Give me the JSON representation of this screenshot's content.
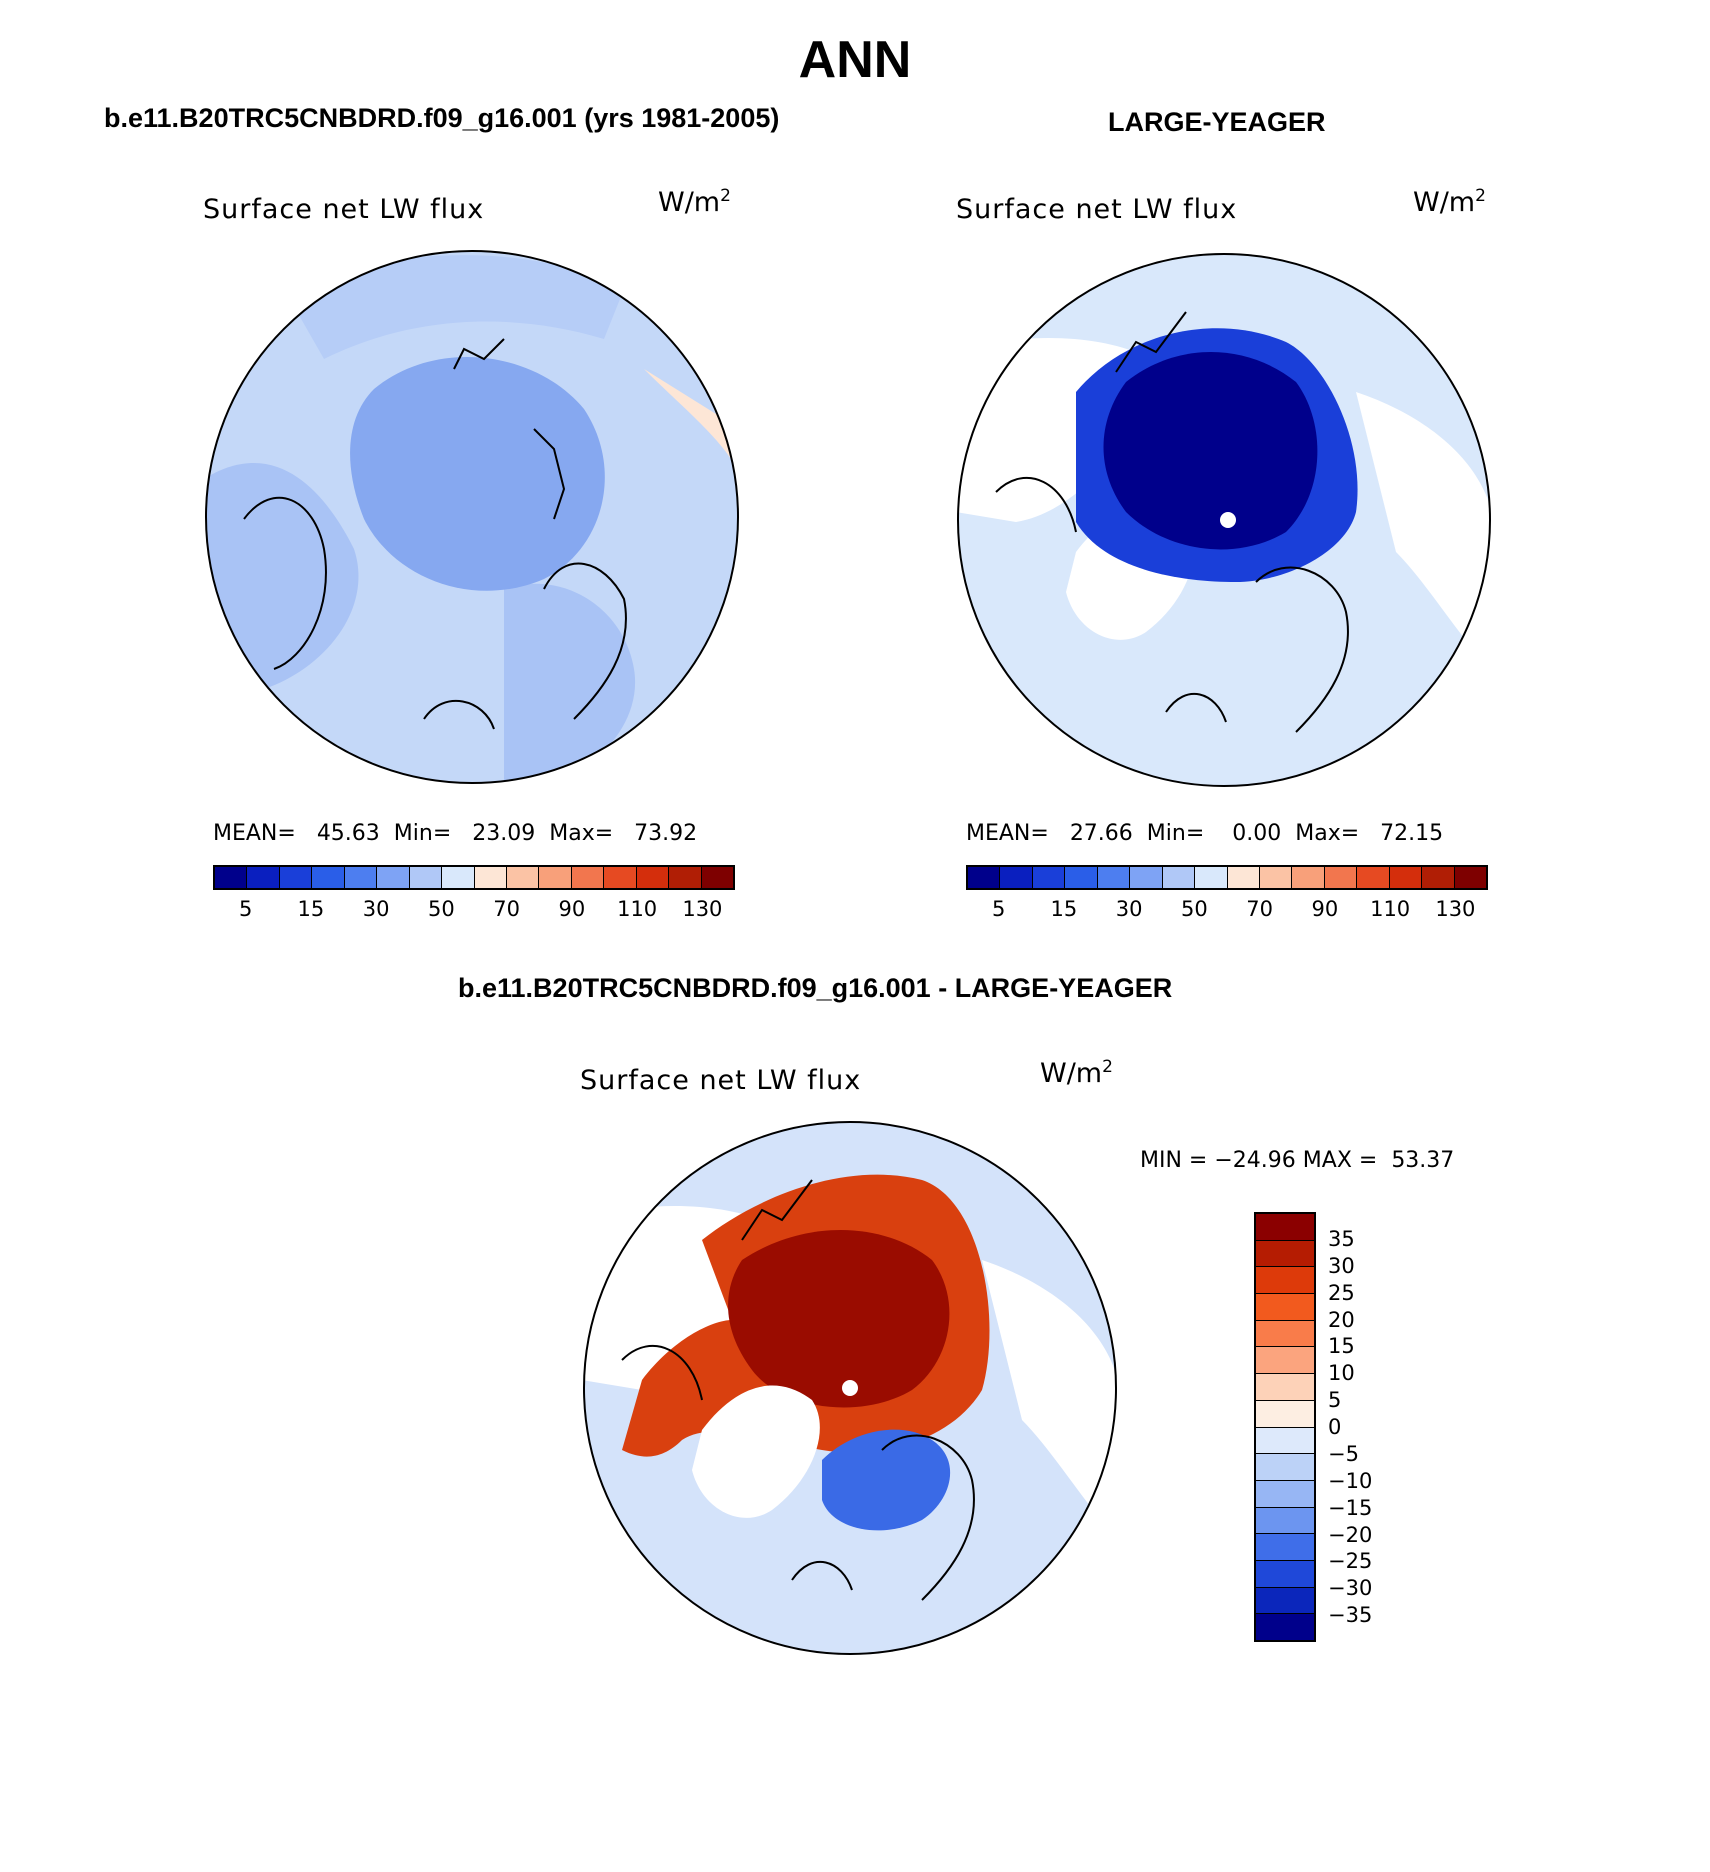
{
  "title": "ANN",
  "panels": [
    {
      "id": "model",
      "case_title": "b.e11.B20TRC5CNBDRD.f09_g16.001 (yrs 1981-2005)",
      "variable": "Surface net LW flux",
      "units": "W/m",
      "units_sup": "2",
      "stats": {
        "mean_label": "MEAN=",
        "mean": "45.63",
        "min_label": "Min=",
        "min": "23.09",
        "max_label": "Max=",
        "max": "73.92"
      },
      "colorbar": {
        "colors": [
          "#00008b",
          "#0a1fbf",
          "#1a3fd9",
          "#2a5ee8",
          "#4d7ef0",
          "#7ea3f5",
          "#b0c8f7",
          "#d9e8fb",
          "#fde6d6",
          "#fbc3a5",
          "#f8a07a",
          "#f2764e",
          "#e64a22",
          "#d42e0c",
          "#b01e05",
          "#7e0000"
        ],
        "ticks": [
          "5",
          "15",
          "30",
          "50",
          "70",
          "90",
          "110",
          "130"
        ]
      },
      "field": {
        "dominant": "#8fb0f2",
        "ocean": "#c4d8f8",
        "land": "#a9c3f5",
        "pole": "#86a8f0"
      }
    },
    {
      "id": "obs",
      "case_title": "LARGE-YEAGER",
      "variable": "Surface net LW flux",
      "units": "W/m",
      "units_sup": "2",
      "stats": {
        "mean_label": "MEAN=",
        "mean": "27.66",
        "min_label": "Min=",
        "min": "0.00",
        "max_label": "Max=",
        "max": "72.15"
      },
      "colorbar": {
        "colors": [
          "#00008b",
          "#0a1fbf",
          "#1a3fd9",
          "#2a5ee8",
          "#4d7ef0",
          "#7ea3f5",
          "#b0c8f7",
          "#d9e8fb",
          "#fde6d6",
          "#fbc3a5",
          "#f8a07a",
          "#f2764e",
          "#e64a22",
          "#d42e0c",
          "#b01e05",
          "#7e0000"
        ],
        "ticks": [
          "5",
          "15",
          "30",
          "50",
          "70",
          "90",
          "110",
          "130"
        ]
      },
      "field": {
        "pole": "#00008b",
        "ring": "#1a3fd9",
        "ocean": "#d9e8fb",
        "land": "#ffffff"
      }
    },
    {
      "id": "diff",
      "case_title": "b.e11.B20TRC5CNBDRD.f09_g16.001 - LARGE-YEAGER",
      "variable": "Surface net LW flux",
      "units": "W/m",
      "units_sup": "2",
      "stats": {
        "min_label": "MIN =",
        "min": "−24.96",
        "max_label": "MAX =",
        "max": "53.37"
      },
      "colorbar": {
        "colors": [
          "#8b0000",
          "#b51c02",
          "#dd3a0a",
          "#f25a1e",
          "#f97c4a",
          "#fba47e",
          "#fdd2b8",
          "#fdeee2",
          "#dde9fb",
          "#bcd2f7",
          "#97b6f4",
          "#6c95f0",
          "#3f6ee9",
          "#1f48d9",
          "#0b26bb",
          "#00008b"
        ],
        "ticks": [
          "35",
          "30",
          "25",
          "20",
          "15",
          "10",
          "5",
          "0",
          "−5",
          "−10",
          "−15",
          "−20",
          "−25",
          "−30",
          "−35"
        ]
      },
      "field": {
        "pole": "#9a0c00",
        "ring": "#d9400f",
        "ocean": "#d4e3fa",
        "neg": "#3a6ae6",
        "land": "#ffffff"
      }
    }
  ]
}
